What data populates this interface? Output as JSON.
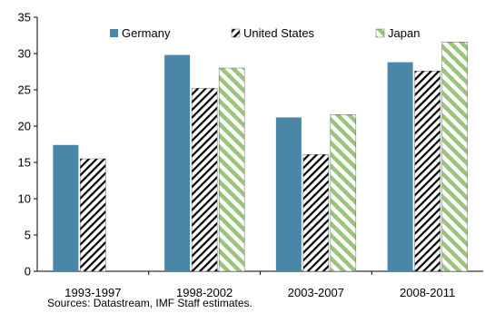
{
  "chart_data": {
    "type": "bar",
    "categories": [
      "1993-1997",
      "1998-2002",
      "2003-2007",
      "2008-2011"
    ],
    "series": [
      {
        "name": "Germany",
        "values": [
          17.4,
          29.8,
          21.2,
          28.8
        ],
        "color": "#4a86a8",
        "pattern": "solid"
      },
      {
        "name": "United States",
        "values": [
          15.5,
          25.2,
          16.1,
          27.6
        ],
        "color": "#000000",
        "pattern": "hatch"
      },
      {
        "name": "Japan",
        "values": [
          null,
          28.0,
          21.6,
          31.6
        ],
        "color": "#9bc37a",
        "pattern": "stripe"
      }
    ],
    "ylim": [
      0,
      35
    ],
    "yticks": [
      0,
      5,
      10,
      15,
      20,
      25,
      30,
      35
    ],
    "legend_position": "top",
    "grid": false
  },
  "footer": {
    "source": "Sources: Datastream, IMF Staff estimates."
  }
}
